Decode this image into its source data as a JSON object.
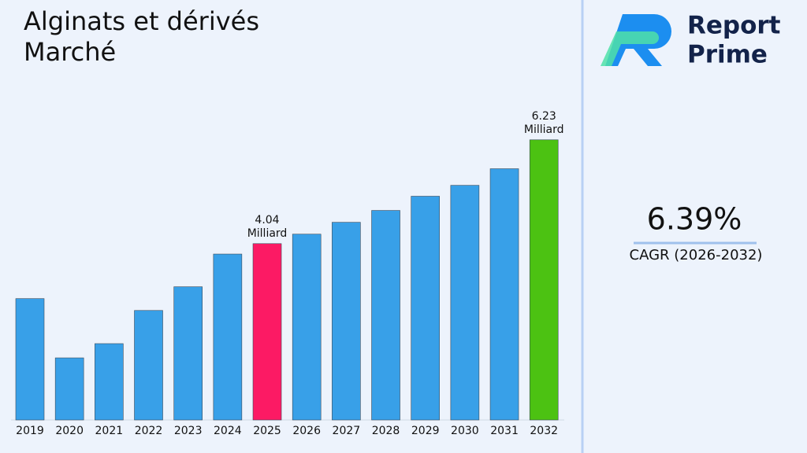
{
  "chart_data": {
    "type": "bar",
    "title": "Alginats et dérivés Marché",
    "categories": [
      "2019",
      "2020",
      "2021",
      "2022",
      "2023",
      "2024",
      "2025",
      "2026",
      "2027",
      "2028",
      "2029",
      "2030",
      "2031",
      "2032"
    ],
    "values": [
      2.88,
      1.63,
      1.93,
      2.63,
      3.13,
      3.82,
      4.04,
      4.24,
      4.49,
      4.74,
      5.04,
      5.27,
      5.62,
      6.23
    ],
    "value_labels": [
      null,
      null,
      null,
      null,
      null,
      null,
      "4.04 Milliard",
      null,
      null,
      null,
      null,
      null,
      null,
      "6.23 Milliard"
    ],
    "colors": [
      "#38a0e8",
      "#38a0e8",
      "#38a0e8",
      "#38a0e8",
      "#38a0e8",
      "#38a0e8",
      "#fc1a64",
      "#38a0e8",
      "#38a0e8",
      "#38a0e8",
      "#38a0e8",
      "#38a0e8",
      "#38a0e8",
      "#4cc212"
    ],
    "ylim": [
      0.32,
      6.5
    ]
  },
  "brand": {
    "line1": "Report",
    "line2": "Prime"
  },
  "cagr": {
    "value": "6.39%",
    "label": "CAGR (2026-2032)"
  }
}
